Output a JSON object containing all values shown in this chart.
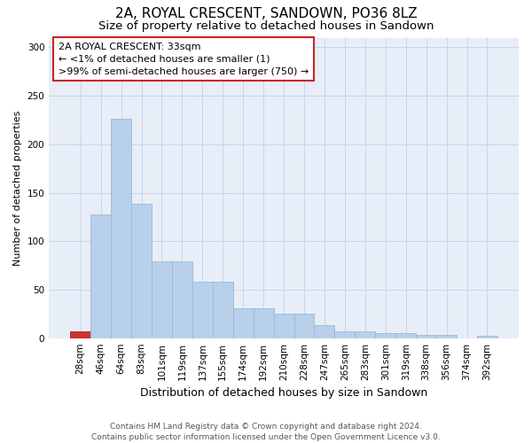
{
  "title": "2A, ROYAL CRESCENT, SANDOWN, PO36 8LZ",
  "subtitle": "Size of property relative to detached houses in Sandown",
  "xlabel": "Distribution of detached houses by size in Sandown",
  "ylabel": "Number of detached properties",
  "categories": [
    "28sqm",
    "46sqm",
    "64sqm",
    "83sqm",
    "101sqm",
    "119sqm",
    "137sqm",
    "155sqm",
    "174sqm",
    "192sqm",
    "210sqm",
    "228sqm",
    "247sqm",
    "265sqm",
    "283sqm",
    "301sqm",
    "319sqm",
    "338sqm",
    "356sqm",
    "374sqm",
    "392sqm"
  ],
  "values": [
    7,
    128,
    226,
    139,
    79,
    79,
    58,
    58,
    31,
    31,
    25,
    25,
    13,
    7,
    7,
    5,
    5,
    3,
    3,
    0,
    2
  ],
  "bar_color": "#b8d0ea",
  "bar_edge_color": "#9ab8d8",
  "highlight_bar_index": 0,
  "highlight_bar_color": "#cc3333",
  "highlight_bar_edge_color": "#aa2222",
  "annotation_line1": "2A ROYAL CRESCENT: 33sqm",
  "annotation_line2": "← <1% of detached houses are smaller (1)",
  "annotation_line3": ">99% of semi-detached houses are larger (750) →",
  "annotation_box_color": "#ffffff",
  "annotation_box_edge_color": "#cc2222",
  "ylim": [
    0,
    310
  ],
  "yticks": [
    0,
    50,
    100,
    150,
    200,
    250,
    300
  ],
  "grid_color": "#c8d4e8",
  "bg_color": "#e8eef8",
  "footer_line1": "Contains HM Land Registry data © Crown copyright and database right 2024.",
  "footer_line2": "Contains public sector information licensed under the Open Government Licence v3.0.",
  "title_fontsize": 11,
  "subtitle_fontsize": 9.5,
  "xlabel_fontsize": 9,
  "ylabel_fontsize": 8,
  "tick_fontsize": 7.5,
  "annotation_fontsize": 8,
  "footer_fontsize": 6.5
}
